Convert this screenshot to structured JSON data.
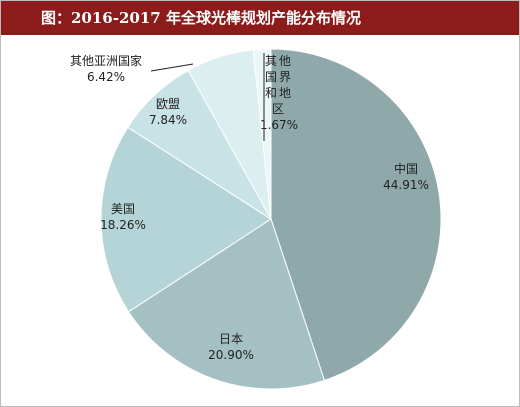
{
  "chart_data": {
    "type": "pie",
    "title": "图：2016-2017 年全球光棒规划产能分布情况",
    "categories": [
      "中国",
      "日本",
      "美国",
      "欧盟",
      "其他亚洲国家",
      "其他国界和地区"
    ],
    "values": [
      44.91,
      20.9,
      18.26,
      7.84,
      6.42,
      1.67
    ],
    "value_labels": [
      "44.91%",
      "20.90%",
      "18.26%",
      "7.84%",
      "6.42%",
      "1.67%"
    ],
    "colors": [
      "#8fa8aa",
      "#a4c0c2",
      "#b5d4d7",
      "#c8e2e5",
      "#dbeef0",
      "#ebf6f7"
    ]
  }
}
